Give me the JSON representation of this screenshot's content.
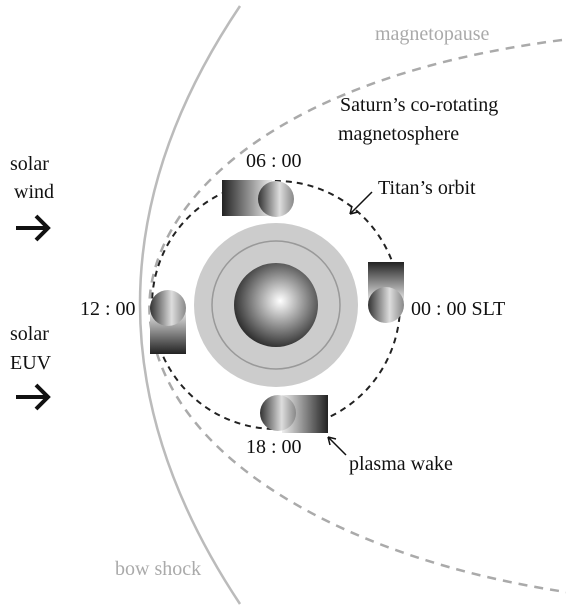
{
  "labels": {
    "magnetopause": "magnetopause",
    "bow_shock": "bow shock",
    "magnetosphere": [
      "Saturn’s co-rotating",
      "magnetosphere"
    ],
    "solar_wind": [
      "solar",
      "wind"
    ],
    "solar_euv": [
      "solar",
      "EUV"
    ],
    "titan_orbit": "Titan’s orbit",
    "plasma_wake": "plasma wake"
  },
  "local_times": [
    "06 : 00",
    "12 : 00",
    "00 : 00 SLT",
    "18 : 00"
  ]
}
